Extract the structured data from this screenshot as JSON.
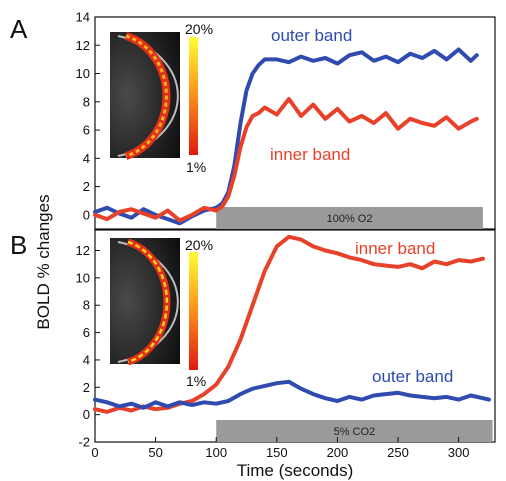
{
  "ylabel": "BOLD % changes",
  "xlabel": "Time (seconds)",
  "x_ticks": [
    0,
    50,
    100,
    150,
    200,
    250,
    300
  ],
  "colors": {
    "inner": "#e8412a",
    "outer": "#2f4bb0",
    "stim": "#9a9a9a"
  },
  "colorbar": {
    "top_label": "20%",
    "bottom_label": "1%"
  },
  "chart_data": [
    {
      "type": "line",
      "panel": "A",
      "xlim": [
        0,
        330
      ],
      "ylim": [
        -1,
        14
      ],
      "y_ticks": [
        0,
        2,
        4,
        6,
        8,
        10,
        12,
        14
      ],
      "stimulus": {
        "label": "100% O2",
        "start": 100,
        "end": 320
      },
      "series": [
        {
          "name": "outer band",
          "key": "outer",
          "x": [
            0,
            10,
            20,
            30,
            40,
            50,
            60,
            70,
            80,
            90,
            100,
            105,
            110,
            115,
            120,
            125,
            130,
            135,
            140,
            150,
            160,
            170,
            180,
            190,
            200,
            210,
            220,
            230,
            240,
            250,
            260,
            270,
            280,
            290,
            300,
            310,
            315
          ],
          "y": [
            0.2,
            0.5,
            0.1,
            -0.2,
            0.4,
            0.0,
            -0.3,
            -0.6,
            -0.1,
            0.3,
            0.5,
            0.8,
            1.6,
            3.5,
            6.5,
            8.8,
            10.0,
            10.6,
            11.0,
            11.0,
            10.8,
            11.2,
            10.9,
            11.1,
            10.7,
            11.3,
            11.5,
            10.9,
            11.2,
            10.8,
            11.4,
            11.1,
            11.6,
            11.0,
            11.7,
            10.9,
            11.3
          ]
        },
        {
          "name": "inner band",
          "key": "inner",
          "x": [
            0,
            10,
            20,
            30,
            40,
            50,
            60,
            70,
            80,
            90,
            100,
            105,
            110,
            115,
            120,
            125,
            130,
            135,
            140,
            150,
            160,
            170,
            180,
            190,
            200,
            210,
            220,
            230,
            240,
            250,
            260,
            270,
            280,
            290,
            300,
            310,
            315
          ],
          "y": [
            0.0,
            -0.3,
            0.2,
            0.4,
            0.1,
            -0.2,
            0.3,
            -0.4,
            0.0,
            0.5,
            0.3,
            0.6,
            1.3,
            2.8,
            4.8,
            6.2,
            7.0,
            7.2,
            7.6,
            7.1,
            8.2,
            7.0,
            7.8,
            6.8,
            7.5,
            6.6,
            7.0,
            6.5,
            7.2,
            6.1,
            6.8,
            6.5,
            6.3,
            6.9,
            6.1,
            6.6,
            6.8
          ]
        }
      ]
    },
    {
      "type": "line",
      "panel": "B",
      "xlim": [
        0,
        330
      ],
      "ylim": [
        -2,
        13.5
      ],
      "y_ticks": [
        -2,
        0,
        2,
        4,
        6,
        8,
        10,
        12
      ],
      "stimulus": {
        "label": "5% CO2",
        "start": 100,
        "end": 328
      },
      "series": [
        {
          "name": "inner band",
          "key": "inner",
          "x": [
            0,
            10,
            20,
            30,
            40,
            50,
            60,
            70,
            80,
            90,
            100,
            110,
            120,
            130,
            140,
            150,
            160,
            170,
            180,
            190,
            200,
            210,
            220,
            230,
            240,
            250,
            260,
            270,
            280,
            290,
            300,
            310,
            320
          ],
          "y": [
            0.4,
            0.2,
            0.5,
            0.3,
            0.6,
            0.4,
            0.5,
            0.8,
            1.0,
            1.5,
            2.2,
            3.5,
            5.5,
            8.0,
            10.5,
            12.3,
            13.0,
            12.8,
            12.3,
            12.0,
            11.8,
            11.5,
            11.3,
            11.0,
            10.9,
            10.8,
            11.0,
            10.7,
            11.2,
            11.0,
            11.3,
            11.2,
            11.4
          ]
        },
        {
          "name": "outer band",
          "key": "outer",
          "x": [
            0,
            10,
            20,
            30,
            40,
            50,
            60,
            70,
            80,
            90,
            100,
            110,
            120,
            130,
            140,
            150,
            160,
            170,
            180,
            190,
            200,
            210,
            220,
            230,
            240,
            250,
            260,
            270,
            280,
            290,
            300,
            310,
            320,
            325
          ],
          "y": [
            1.1,
            0.9,
            0.6,
            0.8,
            0.5,
            0.9,
            0.6,
            0.9,
            0.7,
            0.9,
            0.8,
            1.0,
            1.5,
            1.9,
            2.1,
            2.3,
            2.4,
            1.9,
            1.5,
            1.2,
            1.0,
            1.3,
            1.1,
            1.4,
            1.5,
            1.6,
            1.4,
            1.3,
            1.2,
            1.3,
            1.1,
            1.4,
            1.2,
            1.1
          ]
        }
      ]
    }
  ]
}
